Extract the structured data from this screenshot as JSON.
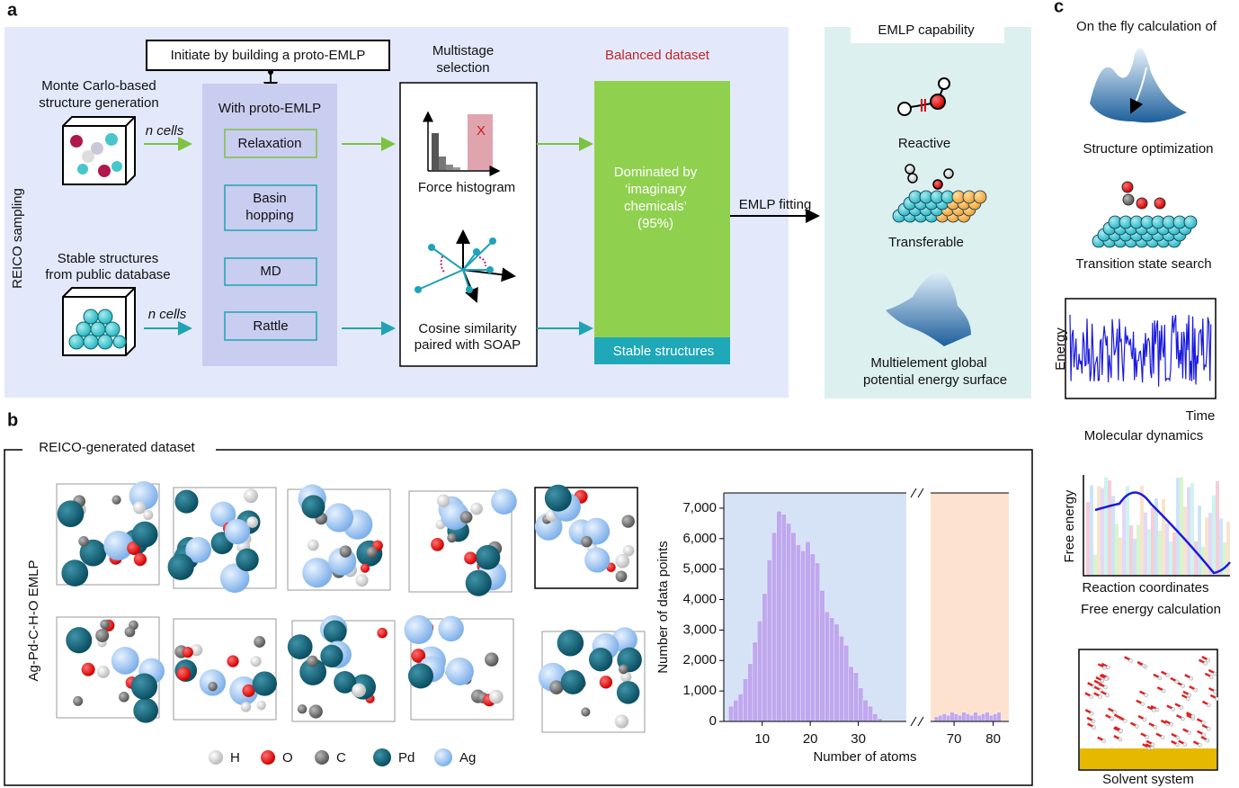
{
  "panel_a": {
    "label": "a",
    "side_label": "REICO sampling",
    "initiate": "Initiate by building a proto-EMLP",
    "monte_carlo": [
      "Monte Carlo-based",
      "structure generation"
    ],
    "n_cells": [
      "n cells",
      "n cells"
    ],
    "stable_source": [
      "Stable structures",
      "from public database"
    ],
    "proto_title": "With proto-EMLP",
    "methods": [
      [
        "Relaxation"
      ],
      [
        "Basin",
        "hopping"
      ],
      [
        "MD"
      ],
      [
        "Rattle"
      ]
    ],
    "selection_title": [
      "Multistage",
      "selection"
    ],
    "reject_mark": "X",
    "force_histogram": "Force histogram",
    "cosine": [
      "Cosine similarity",
      "paired with SOAP"
    ],
    "balanced_title": "Balanced dataset",
    "dominated": [
      "Dominated by",
      "‘imaginary",
      "chemicals’",
      "(95%)"
    ],
    "stable_structures": "Stable structures",
    "fitting": "EMLP fitting",
    "capability_title": "EMLP capability",
    "capabilities": [
      "Reactive",
      "Transferable"
    ],
    "pes": [
      "Multielement global",
      "potential energy surface"
    ]
  },
  "panel_b": {
    "label": "b",
    "frame_title": "REICO-generated dataset",
    "side_label": "Ag-Pd-C-H-O EMLP",
    "legend": [
      "H",
      "O",
      "C",
      "Pd",
      "Ag"
    ],
    "histogram": {
      "type": "histogram",
      "ylabel": "Number of data points",
      "xlabel": "Number of atoms",
      "color": "#bfa8ee",
      "ylim": [
        0,
        7500
      ],
      "yticks": [
        0,
        {
          "value": 1000,
          "label": "1,000"
        },
        {
          "value": 2000,
          "label": "2,000"
        },
        {
          "value": 3000,
          "label": "3,000"
        },
        {
          "value": 4000,
          "label": "4,000"
        },
        {
          "value": 5000,
          "label": "5,000"
        },
        {
          "value": 6000,
          "label": "6,000"
        },
        {
          "value": 7000,
          "label": "7,000"
        }
      ],
      "segments": [
        {
          "xlim": [
            2,
            40
          ],
          "xticks": [
            10,
            20,
            30
          ],
          "background": "#d6e3f6",
          "bins": [
            3,
            4,
            5,
            6,
            7,
            8,
            9,
            10,
            11,
            12,
            13,
            14,
            15,
            16,
            17,
            18,
            19,
            20,
            21,
            22,
            23,
            24,
            25,
            26,
            27,
            28,
            29,
            30,
            31,
            32,
            33,
            34,
            35
          ],
          "counts": [
            500,
            700,
            900,
            1400,
            1900,
            2600,
            3300,
            4200,
            5300,
            6200,
            6900,
            6800,
            6500,
            6200,
            5800,
            5600,
            5900,
            5500,
            5200,
            4300,
            3600,
            3400,
            3200,
            2800,
            2500,
            1800,
            1600,
            1100,
            700,
            500,
            250,
            100
          ]
        },
        {
          "xlim": [
            64,
            84
          ],
          "xticks": [
            70,
            80
          ],
          "background": "#fde3cf",
          "bins": [
            65,
            66,
            67,
            68,
            69,
            70,
            71,
            72,
            73,
            74,
            75,
            76,
            77,
            78,
            79,
            80,
            81,
            82
          ],
          "counts": [
            150,
            200,
            250,
            200,
            300,
            250,
            200,
            300,
            250,
            200,
            300,
            200,
            250,
            300,
            200,
            250,
            300
          ]
        }
      ]
    }
  },
  "panel_c": {
    "label": "c",
    "title": "On the fly calculation of",
    "structure_optimization": "Structure optimization",
    "transition_state": "Transition state search",
    "md_ylabel": "Energy",
    "md_xlabel": "Time",
    "molecular_dynamics": "Molecular dynamics",
    "fe_ylabel": "Free energy",
    "fe_xlabel": "Reaction coordinates",
    "free_energy": "Free energy calculation",
    "solvent": "Solvent system"
  }
}
